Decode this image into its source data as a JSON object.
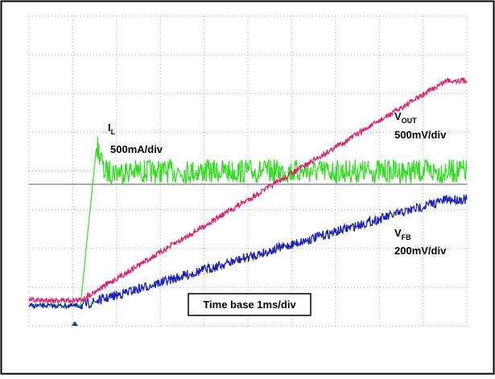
{
  "traces": {
    "il": {
      "symbol": "I",
      "sub": "L",
      "scale": "500mA/div"
    },
    "vout": {
      "symbol": "V",
      "sub": "OUT",
      "scale": "500mV/div"
    },
    "vfb": {
      "symbol": "V",
      "sub": "FB",
      "scale": "200mV/div"
    }
  },
  "time_base": "Time base 1ms/div"
}
